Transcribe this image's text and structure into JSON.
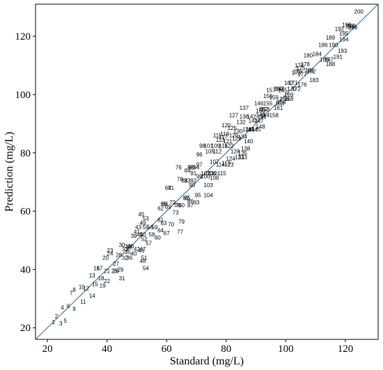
{
  "chart_data": {
    "type": "scatter",
    "xlabel": "Standard (mg/L)",
    "ylabel": "Prediction (mg/L)",
    "xlim": [
      16,
      131
    ],
    "ylim": [
      16,
      131
    ],
    "xticks": [
      20,
      40,
      60,
      80,
      100,
      120
    ],
    "yticks": [
      20,
      40,
      60,
      80,
      100,
      120
    ],
    "grid": false,
    "line_color": "#2a7ab8",
    "reference_line": "y = x",
    "points": [
      {
        "label": "1",
        "x": 22,
        "y": 22
      },
      {
        "label": "2",
        "x": 23,
        "y": 24
      },
      {
        "label": "3",
        "x": 24.5,
        "y": 21.5
      },
      {
        "label": "4",
        "x": 25,
        "y": 27
      },
      {
        "label": "5",
        "x": 26,
        "y": 22.5
      },
      {
        "label": "6",
        "x": 27,
        "y": 27.5
      },
      {
        "label": "7",
        "x": 28,
        "y": 32
      },
      {
        "label": "8",
        "x": 29,
        "y": 33
      },
      {
        "label": "9",
        "x": 29,
        "y": 26.5
      },
      {
        "label": "10",
        "x": 31.5,
        "y": 34
      },
      {
        "label": "11",
        "x": 32,
        "y": 29
      },
      {
        "label": "12",
        "x": 33,
        "y": 33.5
      },
      {
        "label": "13",
        "x": 35,
        "y": 38
      },
      {
        "label": "14",
        "x": 35,
        "y": 31
      },
      {
        "label": "15",
        "x": 36,
        "y": 35
      },
      {
        "label": "16",
        "x": 36.5,
        "y": 40.5
      },
      {
        "label": "17",
        "x": 37.5,
        "y": 40.5
      },
      {
        "label": "18",
        "x": 38,
        "y": 37
      },
      {
        "label": "19",
        "x": 38.5,
        "y": 34.5
      },
      {
        "label": "20",
        "x": 39.5,
        "y": 44
      },
      {
        "label": "21",
        "x": 40,
        "y": 39.5
      },
      {
        "label": "22",
        "x": 40,
        "y": 36
      },
      {
        "label": "23",
        "x": 41,
        "y": 46.5
      },
      {
        "label": "24",
        "x": 41,
        "y": 45.5
      },
      {
        "label": "25",
        "x": 42.5,
        "y": 39.5
      },
      {
        "label": "26",
        "x": 43,
        "y": 39.5
      },
      {
        "label": "27",
        "x": 43,
        "y": 42
      },
      {
        "label": "28",
        "x": 44,
        "y": 45
      },
      {
        "label": "29",
        "x": 44.5,
        "y": 40
      },
      {
        "label": "30",
        "x": 45,
        "y": 48.5
      },
      {
        "label": "31",
        "x": 45,
        "y": 37
      },
      {
        "label": "32",
        "x": 46,
        "y": 44
      },
      {
        "label": "33",
        "x": 46,
        "y": 47
      },
      {
        "label": "34",
        "x": 47,
        "y": 48
      },
      {
        "label": "35",
        "x": 47,
        "y": 46
      },
      {
        "label": "36",
        "x": 47.5,
        "y": 44
      },
      {
        "label": "37",
        "x": 47.5,
        "y": 47.5
      },
      {
        "label": "38",
        "x": 48,
        "y": 48
      },
      {
        "label": "39",
        "x": 49,
        "y": 51.5
      },
      {
        "label": "40",
        "x": 49,
        "y": 45.5
      },
      {
        "label": "41",
        "x": 50,
        "y": 53
      },
      {
        "label": "42",
        "x": 50,
        "y": 47
      },
      {
        "label": "43",
        "x": 50.5,
        "y": 54.5
      },
      {
        "label": "44",
        "x": 51,
        "y": 52
      },
      {
        "label": "45",
        "x": 51.5,
        "y": 59
      },
      {
        "label": "46",
        "x": 51.5,
        "y": 46.5
      },
      {
        "label": "47",
        "x": 52,
        "y": 47
      },
      {
        "label": "48",
        "x": 52,
        "y": 43
      },
      {
        "label": "49",
        "x": 52,
        "y": 56
      },
      {
        "label": "50",
        "x": 52,
        "y": 52
      },
      {
        "label": "51",
        "x": 52.5,
        "y": 44
      },
      {
        "label": "52",
        "x": 52.5,
        "y": 50.5
      },
      {
        "label": "53",
        "x": 53,
        "y": 57.5
      },
      {
        "label": "54",
        "x": 53,
        "y": 40.5
      },
      {
        "label": "55",
        "x": 53,
        "y": 54.5
      },
      {
        "label": "56",
        "x": 54.5,
        "y": 54.5
      },
      {
        "label": "57",
        "x": 54,
        "y": 49
      },
      {
        "label": "58",
        "x": 55,
        "y": 52
      },
      {
        "label": "59",
        "x": 56,
        "y": 54.5
      },
      {
        "label": "60",
        "x": 57,
        "y": 51
      },
      {
        "label": "61",
        "x": 58,
        "y": 57
      },
      {
        "label": "62",
        "x": 58,
        "y": 61
      },
      {
        "label": "63",
        "x": 59,
        "y": 56
      },
      {
        "label": "64",
        "x": 58,
        "y": 53.5
      },
      {
        "label": "65",
        "x": 59,
        "y": 62.5
      },
      {
        "label": "66",
        "x": 59.5,
        "y": 62.5
      },
      {
        "label": "67",
        "x": 60,
        "y": 52.5
      },
      {
        "label": "68",
        "x": 60.5,
        "y": 68
      },
      {
        "label": "69",
        "x": 60.5,
        "y": 61.5
      },
      {
        "label": "70",
        "x": 61.5,
        "y": 55.5
      },
      {
        "label": "71",
        "x": 61.5,
        "y": 68
      },
      {
        "label": "72",
        "x": 62,
        "y": 63
      },
      {
        "label": "73",
        "x": 63,
        "y": 59.5
      },
      {
        "label": "74",
        "x": 63.5,
        "y": 62
      },
      {
        "label": "75",
        "x": 64,
        "y": 62
      },
      {
        "label": "76",
        "x": 64,
        "y": 75
      },
      {
        "label": "77",
        "x": 64.5,
        "y": 53
      },
      {
        "label": "78",
        "x": 64.5,
        "y": 71
      },
      {
        "label": "79",
        "x": 65,
        "y": 56.5
      },
      {
        "label": "80",
        "x": 65,
        "y": 62
      },
      {
        "label": "81",
        "x": 66,
        "y": 70.5
      },
      {
        "label": "82",
        "x": 66.5,
        "y": 64.5
      },
      {
        "label": "83",
        "x": 67,
        "y": 70.5
      },
      {
        "label": "84",
        "x": 67,
        "y": 74
      },
      {
        "label": "85",
        "x": 67,
        "y": 64.5
      },
      {
        "label": "86",
        "x": 68,
        "y": 63.5
      },
      {
        "label": "87",
        "x": 68,
        "y": 62
      },
      {
        "label": "88",
        "x": 68,
        "y": 75
      },
      {
        "label": "89",
        "x": 68.5,
        "y": 75
      },
      {
        "label": "90",
        "x": 68.5,
        "y": 69
      },
      {
        "label": "91",
        "x": 69,
        "y": 73
      },
      {
        "label": "92",
        "x": 69,
        "y": 70.5
      },
      {
        "label": "93",
        "x": 70,
        "y": 63
      },
      {
        "label": "94",
        "x": 70,
        "y": 75
      },
      {
        "label": "95",
        "x": 70.5,
        "y": 65.5
      },
      {
        "label": "96",
        "x": 71,
        "y": 79.5
      },
      {
        "label": "97",
        "x": 71,
        "y": 76
      },
      {
        "label": "98",
        "x": 72,
        "y": 82.5
      },
      {
        "label": "99",
        "x": 71,
        "y": 72
      },
      {
        "label": "100",
        "x": 73,
        "y": 72
      },
      {
        "label": "101",
        "x": 74,
        "y": 82.5
      },
      {
        "label": "102",
        "x": 73,
        "y": 73
      },
      {
        "label": "103",
        "x": 74,
        "y": 69
      },
      {
        "label": "104",
        "x": 74,
        "y": 65.5
      },
      {
        "label": "105",
        "x": 74.5,
        "y": 80.5
      },
      {
        "label": "106",
        "x": 75,
        "y": 73
      },
      {
        "label": "107",
        "x": 76,
        "y": 77
      },
      {
        "label": "108",
        "x": 76,
        "y": 71.5
      },
      {
        "label": "109",
        "x": 76.5,
        "y": 82.5
      },
      {
        "label": "110",
        "x": 75.5,
        "y": 73
      },
      {
        "label": "111",
        "x": 77,
        "y": 86
      },
      {
        "label": "112",
        "x": 77,
        "y": 80.5
      },
      {
        "label": "113",
        "x": 78,
        "y": 84.5
      },
      {
        "label": "114",
        "x": 78,
        "y": 76
      },
      {
        "label": "115",
        "x": 78.5,
        "y": 73
      },
      {
        "label": "116",
        "x": 79,
        "y": 82.5
      },
      {
        "label": "117",
        "x": 79,
        "y": 85.5
      },
      {
        "label": "118",
        "x": 79.5,
        "y": 86.5
      },
      {
        "label": "119",
        "x": 80,
        "y": 76.5
      },
      {
        "label": "120",
        "x": 80,
        "y": 89.5
      },
      {
        "label": "121",
        "x": 80.5,
        "y": 84
      },
      {
        "label": "122",
        "x": 81,
        "y": 82.5
      },
      {
        "label": "123",
        "x": 81,
        "y": 76
      },
      {
        "label": "124",
        "x": 81.5,
        "y": 78
      },
      {
        "label": "125",
        "x": 82,
        "y": 88.5
      },
      {
        "label": "126",
        "x": 82.5,
        "y": 86
      },
      {
        "label": "127",
        "x": 82.5,
        "y": 93
      },
      {
        "label": "128",
        "x": 83,
        "y": 80.5
      },
      {
        "label": "129",
        "x": 83.5,
        "y": 85
      },
      {
        "label": "130",
        "x": 84,
        "y": 87.5
      },
      {
        "label": "131",
        "x": 84.5,
        "y": 78.5
      },
      {
        "label": "132",
        "x": 85,
        "y": 90.5
      },
      {
        "label": "133",
        "x": 85.5,
        "y": 78.5
      },
      {
        "label": "134",
        "x": 85.5,
        "y": 85.5
      },
      {
        "label": "135",
        "x": 85.5,
        "y": 80
      },
      {
        "label": "136",
        "x": 86,
        "y": 92.5
      },
      {
        "label": "137",
        "x": 86,
        "y": 95.5
      },
      {
        "label": "138",
        "x": 86.5,
        "y": 81.5
      },
      {
        "label": "139",
        "x": 87,
        "y": 88
      },
      {
        "label": "140",
        "x": 87.5,
        "y": 84
      },
      {
        "label": "141",
        "x": 88,
        "y": 88
      },
      {
        "label": "142",
        "x": 88.5,
        "y": 92.5
      },
      {
        "label": "143",
        "x": 89,
        "y": 91
      },
      {
        "label": "144",
        "x": 89,
        "y": 88
      },
      {
        "label": "145",
        "x": 90,
        "y": 88
      },
      {
        "label": "146",
        "x": 91,
        "y": 97
      },
      {
        "label": "147",
        "x": 91,
        "y": 91
      },
      {
        "label": "148",
        "x": 91.5,
        "y": 89
      },
      {
        "label": "149",
        "x": 91.5,
        "y": 93
      },
      {
        "label": "150",
        "x": 91.5,
        "y": 94.5
      },
      {
        "label": "151",
        "x": 92,
        "y": 92.5
      },
      {
        "label": "152",
        "x": 92.5,
        "y": 95
      },
      {
        "label": "153",
        "x": 93,
        "y": 95
      },
      {
        "label": "154",
        "x": 93,
        "y": 93
      },
      {
        "label": "155",
        "x": 94,
        "y": 97
      },
      {
        "label": "156",
        "x": 94,
        "y": 99.5
      },
      {
        "label": "157",
        "x": 95,
        "y": 101.5
      },
      {
        "label": "158",
        "x": 96,
        "y": 93
      },
      {
        "label": "159",
        "x": 96,
        "y": 99
      },
      {
        "label": "160",
        "x": 97.5,
        "y": 102
      },
      {
        "label": "161",
        "x": 97.5,
        "y": 95.5
      },
      {
        "label": "162",
        "x": 98,
        "y": 102
      },
      {
        "label": "163",
        "x": 98,
        "y": 97
      },
      {
        "label": "164",
        "x": 98.5,
        "y": 97.5
      },
      {
        "label": "165",
        "x": 99,
        "y": 101.5
      },
      {
        "label": "166",
        "x": 99.5,
        "y": 98.5
      },
      {
        "label": "167",
        "x": 101,
        "y": 104
      },
      {
        "label": "168",
        "x": 101,
        "y": 98.5
      },
      {
        "label": "169",
        "x": 101,
        "y": 100
      },
      {
        "label": "170",
        "x": 102,
        "y": 102
      },
      {
        "label": "171",
        "x": 102.5,
        "y": 104
      },
      {
        "label": "172",
        "x": 103.5,
        "y": 102
      },
      {
        "label": "173",
        "x": 103.5,
        "y": 107.5
      },
      {
        "label": "174",
        "x": 104.5,
        "y": 110
      },
      {
        "label": "175",
        "x": 105,
        "y": 109
      },
      {
        "label": "176",
        "x": 105.5,
        "y": 103.5
      },
      {
        "label": "177",
        "x": 105.5,
        "y": 107
      },
      {
        "label": "178",
        "x": 106.5,
        "y": 110.5
      },
      {
        "label": "179",
        "x": 104,
        "y": 108
      },
      {
        "label": "180",
        "x": 107.5,
        "y": 113.5
      },
      {
        "label": "181",
        "x": 108,
        "y": 108.5
      },
      {
        "label": "182",
        "x": 108.5,
        "y": 108
      },
      {
        "label": "183",
        "x": 109.5,
        "y": 105
      },
      {
        "label": "184",
        "x": 110.5,
        "y": 114
      },
      {
        "label": "185",
        "x": 113,
        "y": 112
      },
      {
        "label": "186",
        "x": 112.5,
        "y": 117
      },
      {
        "label": "187",
        "x": 114.5,
        "y": 112
      },
      {
        "label": "188",
        "x": 115,
        "y": 110.5
      },
      {
        "label": "189",
        "x": 115,
        "y": 119.5
      },
      {
        "label": "190",
        "x": 116,
        "y": 117
      },
      {
        "label": "191",
        "x": 117.5,
        "y": 113
      },
      {
        "label": "192",
        "x": 118,
        "y": 122.5
      },
      {
        "label": "193",
        "x": 119,
        "y": 115
      },
      {
        "label": "194",
        "x": 119.5,
        "y": 119
      },
      {
        "label": "195",
        "x": 119.5,
        "y": 121
      },
      {
        "label": "196",
        "x": 120.5,
        "y": 124
      },
      {
        "label": "197",
        "x": 121.5,
        "y": 123.5
      },
      {
        "label": "198",
        "x": 122,
        "y": 123.5
      },
      {
        "label": "199",
        "x": 122.5,
        "y": 123
      },
      {
        "label": "200",
        "x": 124.5,
        "y": 128.5
      }
    ]
  }
}
